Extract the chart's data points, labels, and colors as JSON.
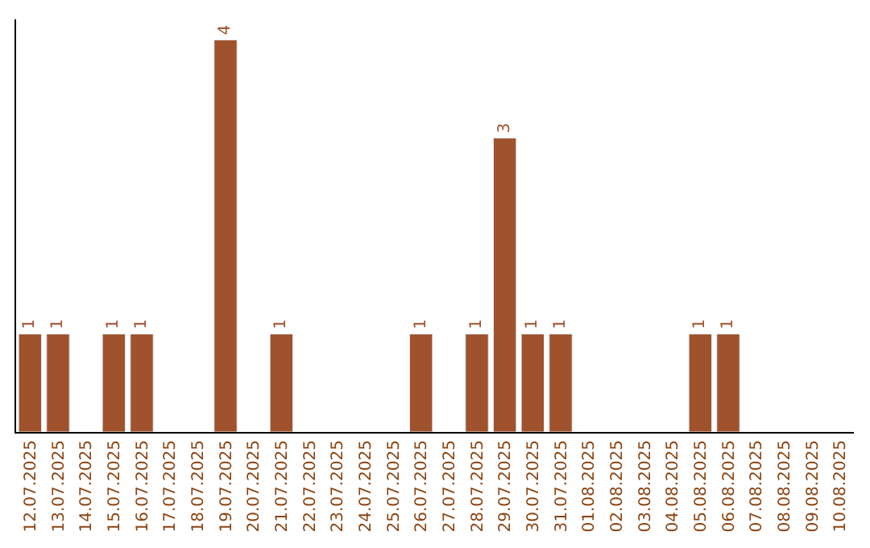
{
  "chart_data": {
    "type": "bar",
    "categories": [
      "12.07.2025",
      "13.07.2025",
      "14.07.2025",
      "15.07.2025",
      "16.07.2025",
      "17.07.2025",
      "18.07.2025",
      "19.07.2025",
      "20.07.2025",
      "21.07.2025",
      "22.07.2025",
      "23.07.2025",
      "24.07.2025",
      "25.07.2025",
      "26.07.2025",
      "27.07.2025",
      "28.07.2025",
      "29.07.2025",
      "30.07.2025",
      "31.07.2025",
      "01.08.2025",
      "02.08.2025",
      "03.08.2025",
      "04.08.2025",
      "05.08.2025",
      "06.08.2025",
      "07.08.2025",
      "08.08.2025",
      "09.08.2025",
      "10.08.2025"
    ],
    "values": [
      1,
      1,
      null,
      1,
      1,
      null,
      null,
      4,
      null,
      1,
      null,
      null,
      null,
      null,
      1,
      null,
      1,
      3,
      1,
      1,
      null,
      null,
      null,
      null,
      1,
      1,
      null,
      null,
      null,
      null
    ],
    "data_labels": true,
    "color": "#a0522d",
    "tick_labels": "x",
    "legend": false
  }
}
